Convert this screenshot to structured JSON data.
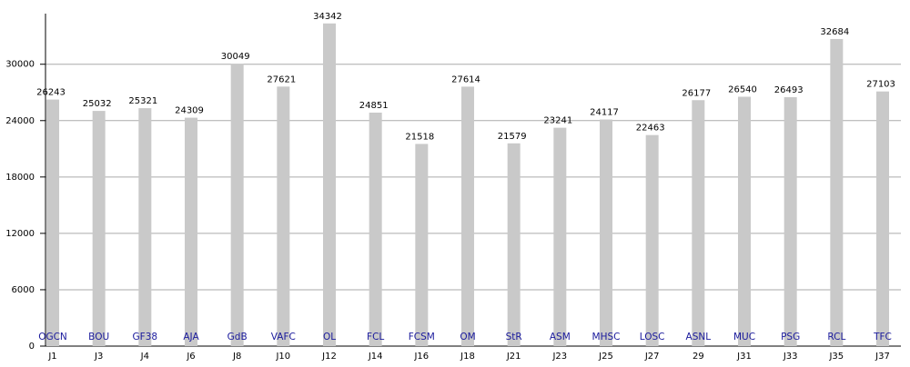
{
  "chart_data": {
    "type": "bar",
    "categories": [
      "J1",
      "J3",
      "J4",
      "J6",
      "J8",
      "J10",
      "J12",
      "J14",
      "J16",
      "J18",
      "J21",
      "J23",
      "J25",
      "J27",
      "29",
      "J31",
      "J33",
      "J35",
      "J37"
    ],
    "teams": [
      "OGCN",
      "BOU",
      "GF38",
      "AJA",
      "GdB",
      "VAFC",
      "OL",
      "FCL",
      "FCSM",
      "OM",
      "StR",
      "ASM",
      "MHSC",
      "LOSC",
      "ASNL",
      "MUC",
      "PSG",
      "RCL",
      "TFC"
    ],
    "values": [
      26243,
      25032,
      25321,
      24309,
      30049,
      27621,
      34342,
      24851,
      21518,
      27614,
      21579,
      23241,
      24117,
      22463,
      26177,
      26540,
      26493,
      32684,
      27103
    ],
    "color": "#c9c9c9",
    "ylim": [
      0,
      35000
    ],
    "yticks": [
      0,
      6000,
      12000,
      18000,
      24000,
      30000
    ],
    "grid": true
  }
}
